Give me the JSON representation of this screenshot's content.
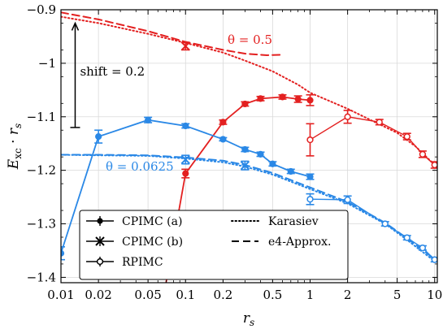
{
  "chart_data": {
    "type": "line",
    "xlabel": "r_s",
    "ylabel": "E_xc · r_s",
    "xscale": "log",
    "xlim": [
      0.01,
      10.5
    ],
    "ylim": [
      -1.41,
      -0.9
    ],
    "xticks": [
      0.01,
      0.02,
      0.05,
      0.1,
      0.2,
      0.5,
      1,
      2,
      5,
      10
    ],
    "xtick_labels": [
      "0.01",
      "0.02",
      "0.05",
      "0.1",
      "0.2",
      "0.5",
      "1",
      "2",
      "5",
      "10"
    ],
    "yticks": [
      -0.9,
      -1.0,
      -1.1,
      -1.2,
      -1.3,
      -1.4
    ],
    "ytick_labels": [
      "−0.9",
      "−1",
      "−1.1",
      "−1.2",
      "−1.3",
      "−1.4"
    ],
    "grid": true,
    "legend": {
      "placement": "bottom-left",
      "entries": [
        {
          "label": "CPIMC (a)",
          "style": "filled-circle-errorbar"
        },
        {
          "label": "CPIMC (b)",
          "style": "cross-errorbar"
        },
        {
          "label": "RPIMC",
          "style": "open-circle-errorbar"
        },
        {
          "label": "Karasiev",
          "style": "dotted"
        },
        {
          "label": "e4-Approx.",
          "style": "dashed"
        }
      ]
    },
    "annotations": [
      {
        "text": "θ = 0.5",
        "color": "#e32020"
      },
      {
        "text": "θ = 0.0625",
        "color": "#2a88e6"
      },
      {
        "text": "shift = 0.2",
        "color": "#000000",
        "arrow_from": -1.12,
        "arrow_to": -0.925,
        "arrow_x": 0.013
      }
    ],
    "colors": {
      "red": "#e32020",
      "blue": "#2a88e6",
      "black": "#000000"
    },
    "series": [
      {
        "theta": "0.5",
        "kind": "Karasiev",
        "color": "#e32020",
        "style": "dotted",
        "points": [
          [
            0.01,
            -0.913
          ],
          [
            0.02,
            -0.925
          ],
          [
            0.05,
            -0.945
          ],
          [
            0.1,
            -0.962
          ],
          [
            0.2,
            -0.98
          ],
          [
            0.3,
            -0.995
          ],
          [
            0.5,
            -1.015
          ],
          [
            0.8,
            -1.04
          ],
          [
            1,
            -1.055
          ],
          [
            2,
            -1.085
          ],
          [
            3,
            -1.105
          ],
          [
            5,
            -1.13
          ],
          [
            7,
            -1.155
          ],
          [
            10,
            -1.19
          ]
        ]
      },
      {
        "theta": "0.5",
        "kind": "e4-Approx.",
        "color": "#e32020",
        "style": "dashed",
        "points": [
          [
            0.01,
            -0.905
          ],
          [
            0.02,
            -0.918
          ],
          [
            0.05,
            -0.94
          ],
          [
            0.1,
            -0.96
          ],
          [
            0.2,
            -0.975
          ],
          [
            0.3,
            -0.982
          ],
          [
            0.45,
            -0.985
          ],
          [
            0.6,
            -0.984
          ]
        ]
      },
      {
        "theta": "0.5",
        "kind": "CPIMC (a)",
        "color": "#e32020",
        "marker": "filled-circle",
        "points": [
          [
            0.065,
            -1.45
          ],
          [
            0.1,
            -1.206
          ],
          [
            0.2,
            -1.11
          ],
          [
            0.3,
            -1.076
          ],
          [
            0.4,
            -1.066
          ],
          [
            0.6,
            -1.063
          ],
          [
            0.8,
            -1.067
          ],
          [
            1,
            -1.069
          ]
        ],
        "errors": [
          0,
          0.008,
          0.004,
          0.004,
          0.004,
          0.004,
          0.006,
          0.01
        ]
      },
      {
        "theta": "0.5",
        "kind": "CPIMC (b)",
        "color": "#e32020",
        "marker": "cross",
        "points": [
          [
            0.1,
            -0.968
          ]
        ],
        "errors": [
          0.007
        ]
      },
      {
        "theta": "0.5",
        "kind": "RPIMC",
        "color": "#e32020",
        "marker": "open-circle",
        "points": [
          [
            1,
            -1.143
          ],
          [
            2,
            -1.1
          ],
          [
            3.6,
            -1.11
          ],
          [
            6,
            -1.137
          ],
          [
            8,
            -1.17
          ],
          [
            10,
            -1.19
          ]
        ],
        "errors": [
          0.03,
          0.012,
          0.005,
          0.006,
          0.006,
          0.006
        ]
      },
      {
        "theta": "0.0625",
        "kind": "Karasiev",
        "color": "#2a88e6",
        "style": "dotted",
        "points": [
          [
            0.01,
            -1.171
          ],
          [
            0.02,
            -1.172
          ],
          [
            0.05,
            -1.173
          ],
          [
            0.1,
            -1.178
          ],
          [
            0.2,
            -1.185
          ],
          [
            0.3,
            -1.193
          ],
          [
            0.5,
            -1.208
          ],
          [
            1,
            -1.235
          ],
          [
            2,
            -1.262
          ],
          [
            4,
            -1.3
          ],
          [
            6,
            -1.33
          ],
          [
            10,
            -1.37
          ]
        ]
      },
      {
        "theta": "0.0625",
        "kind": "e4-Approx.",
        "color": "#2a88e6",
        "style": "dashed",
        "points": [
          [
            0.01,
            -1.171
          ],
          [
            0.02,
            -1.171
          ],
          [
            0.05,
            -1.172
          ],
          [
            0.1,
            -1.176
          ],
          [
            0.2,
            -1.182
          ],
          [
            0.3,
            -1.19
          ],
          [
            0.5,
            -1.205
          ],
          [
            1,
            -1.232
          ],
          [
            2,
            -1.259
          ],
          [
            4,
            -1.298
          ],
          [
            6,
            -1.327
          ],
          [
            10,
            -1.366
          ]
        ]
      },
      {
        "theta": "0.0625",
        "kind": "CPIMC (a)",
        "color": "#2a88e6",
        "marker": "filled-circle",
        "points": [
          [
            0.01,
            -1.355
          ],
          [
            0.02,
            -1.137
          ],
          [
            0.05,
            -1.106
          ],
          [
            0.1,
            -1.117
          ],
          [
            0.2,
            -1.142
          ],
          [
            0.3,
            -1.161
          ],
          [
            0.4,
            -1.17
          ],
          [
            0.5,
            -1.188
          ],
          [
            0.7,
            -1.202
          ],
          [
            1,
            -1.212
          ]
        ],
        "errors": [
          0.012,
          0.012,
          0.005,
          0.004,
          0.003,
          0.004,
          0.004,
          0.004,
          0.004,
          0.005
        ]
      },
      {
        "theta": "0.0625",
        "kind": "CPIMC (b)",
        "color": "#2a88e6",
        "marker": "cross",
        "points": [
          [
            0.1,
            -1.18
          ],
          [
            0.3,
            -1.191
          ]
        ],
        "errors": [
          0.008,
          0.008
        ]
      },
      {
        "theta": "0.0625",
        "kind": "RPIMC",
        "color": "#2a88e6",
        "marker": "open-circle",
        "points": [
          [
            1,
            -1.254
          ],
          [
            2,
            -1.255
          ],
          [
            4,
            -1.3
          ],
          [
            6,
            -1.326
          ],
          [
            8,
            -1.345
          ],
          [
            10,
            -1.367
          ]
        ],
        "errors": [
          0.01,
          0.007,
          0.004,
          0.004,
          0.004,
          0.004
        ]
      }
    ]
  }
}
